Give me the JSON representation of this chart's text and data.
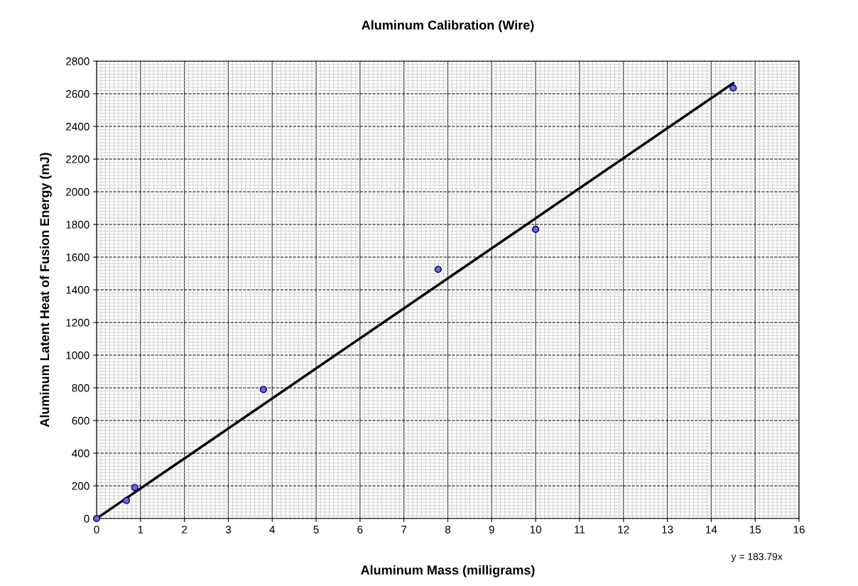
{
  "chart_data": {
    "type": "scatter",
    "title": "Aluminum Calibration (Wire)",
    "xlabel": "Aluminum Mass (milligrams)",
    "ylabel": "Aluminum Latent Heat of Fusion Energy (mJ)",
    "xlim": [
      0,
      16
    ],
    "xticks": [
      0,
      1,
      2,
      3,
      4,
      5,
      6,
      7,
      8,
      9,
      10,
      11,
      12,
      13,
      14,
      15,
      16
    ],
    "ylim": [
      0,
      2800
    ],
    "yticks": [
      0,
      200,
      400,
      600,
      800,
      1000,
      1200,
      1400,
      1600,
      1800,
      2000,
      2200,
      2400,
      2600,
      2800
    ],
    "grid": true,
    "series": [
      {
        "color": "#6a6ac8",
        "marker": "circle",
        "x": [
          0,
          0.68,
          0.87,
          3.8,
          7.78,
          10,
          14.5
        ],
        "values": [
          0,
          110,
          190,
          790,
          1525,
          1770,
          2635
        ]
      },
      {
        "type": "line",
        "color": "#000000",
        "line_style": "solid",
        "x": [
          0,
          14.5
        ],
        "values": [
          0,
          2665
        ]
      }
    ],
    "annotations": [
      "y = 183.79x"
    ]
  }
}
